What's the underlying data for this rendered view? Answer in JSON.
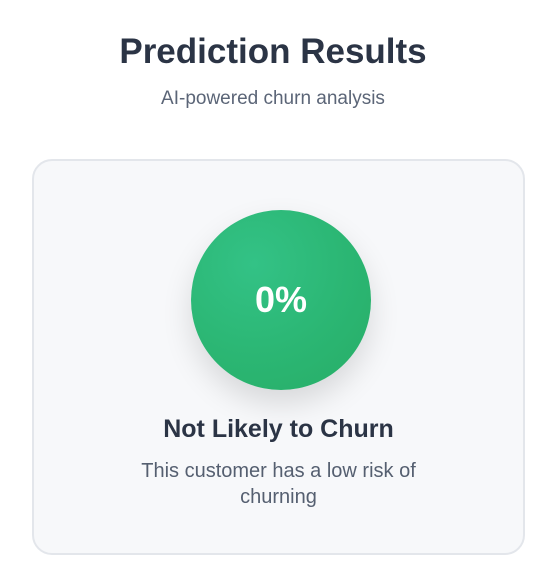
{
  "header": {
    "title": "Prediction Results",
    "subtitle": "AI-powered churn analysis"
  },
  "result": {
    "probability_label": "0%",
    "probability": 0,
    "verdict": "Not Likely to Churn",
    "description": "This customer has a low risk of churning",
    "status_color": "#2bb673"
  }
}
